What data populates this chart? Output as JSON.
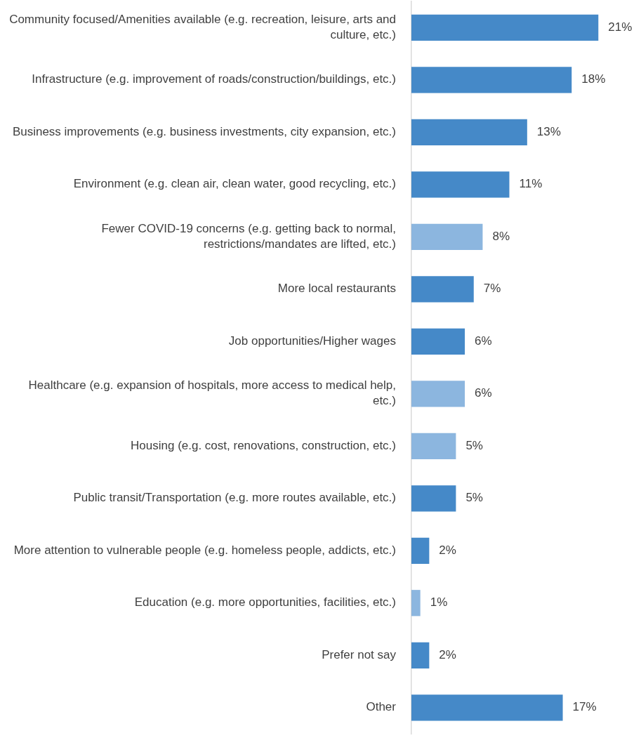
{
  "chart_data": {
    "type": "bar",
    "orientation": "horizontal",
    "tick_labels": "y",
    "categories": [
      "Community focused/Amenities available (e.g. recreation, leisure, arts and culture, etc.)",
      "Infrastructure (e.g. improvement of roads/construction/buildings, etc.)",
      "Business improvements (e.g. business investments, city expansion, etc.)",
      "Environment (e.g. clean air, clean water, good recycling, etc.)",
      "Fewer COVID-19 concerns (e.g. getting back to normal, restrictions/mandates are lifted, etc.)",
      "More local restaurants",
      "Job opportunities/Higher wages",
      "Healthcare (e.g. expansion of hospitals, more access to medical help, etc.)",
      "Housing (e.g. cost, renovations, construction, etc.)",
      "Public transit/Transportation (e.g. more routes available, etc.)",
      "More attention to vulnerable people (e.g. homeless people, addicts, etc.)",
      "Education (e.g. more opportunities, facilities, etc.)",
      "Prefer not say",
      "Other"
    ],
    "values": [
      21,
      18,
      13,
      11,
      8,
      7,
      6,
      6,
      5,
      5,
      2,
      1,
      2,
      17
    ],
    "colors": [
      "#4589c8",
      "#4589c8",
      "#4589c8",
      "#4589c8",
      "#8cb6df",
      "#4589c8",
      "#4589c8",
      "#8cb6df",
      "#8cb6df",
      "#4589c8",
      "#4589c8",
      "#8cb6df",
      "#4589c8",
      "#4589c8"
    ],
    "value_labels": [
      "21%",
      "18%",
      "13%",
      "11%",
      "8%",
      "7%",
      "6%",
      "6%",
      "5%",
      "5%",
      "2%",
      "1%",
      "2%",
      "17%"
    ]
  }
}
